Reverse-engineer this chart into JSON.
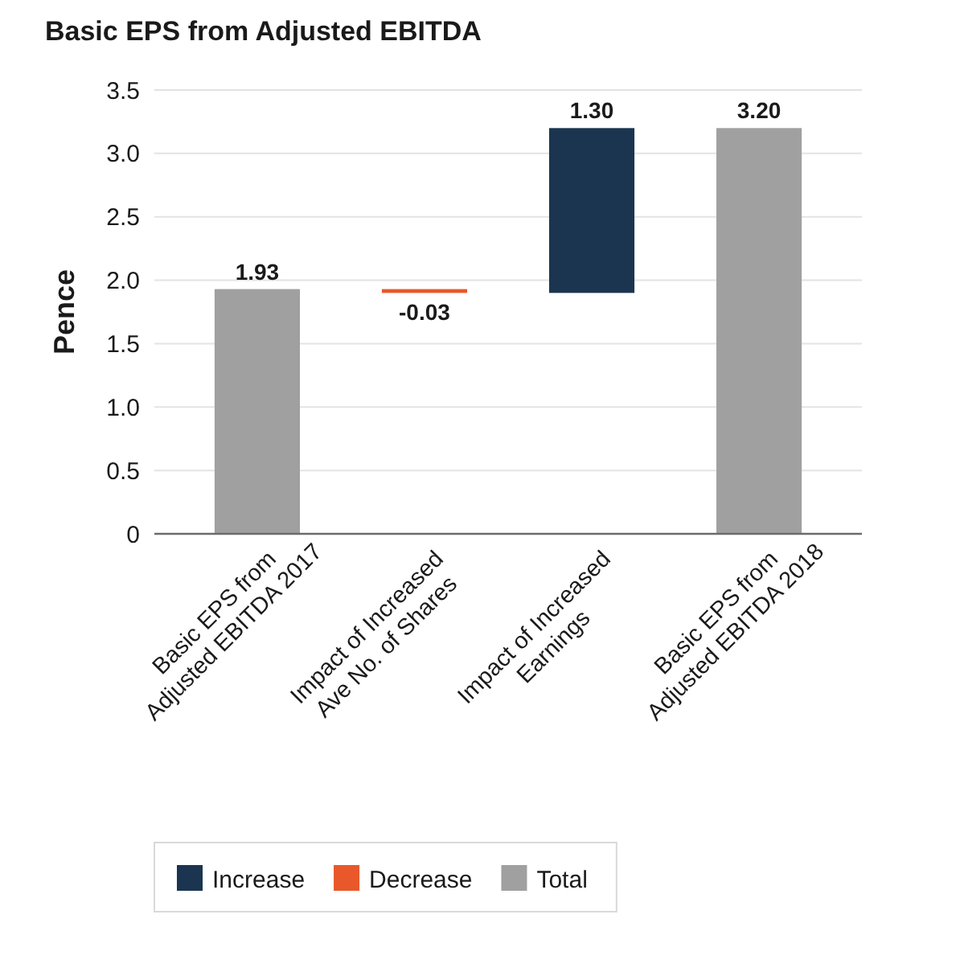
{
  "chart_data": {
    "type": "bar",
    "title": "Basic EPS from Adjusted EBITDA",
    "ylabel": "Pence",
    "categories": [
      "Basic EPS from Adjusted EBITDA 2017",
      "Impact of Increased Ave No. of Shares",
      "Impact of Increased Earnings",
      "Basic EPS from Adjusted EBITDA 2018"
    ],
    "series": [
      {
        "name": "Increase",
        "color": "#1b3550",
        "values": [
          null,
          null,
          1.3,
          null
        ],
        "base": [
          null,
          null,
          1.9,
          null
        ],
        "value_labels": [
          null,
          null,
          "1.30",
          null
        ]
      },
      {
        "name": "Decrease",
        "color": "#e8582a",
        "values": [
          null,
          -0.03,
          null,
          null
        ],
        "base": [
          null,
          1.93,
          null,
          null
        ],
        "value_labels": [
          null,
          "-0.03",
          null,
          null
        ]
      },
      {
        "name": "Total",
        "color": "#a0a0a0",
        "values": [
          1.93,
          null,
          null,
          3.2
        ],
        "base": [
          0,
          null,
          null,
          0
        ],
        "value_labels": [
          "1.93",
          null,
          null,
          "3.20"
        ]
      }
    ],
    "ylim": [
      0,
      3.5
    ],
    "yticks": [
      0,
      0.5,
      {
        "value": 1,
        "label": "1.0"
      },
      1.5,
      {
        "value": 2,
        "label": "2.0"
      },
      2.5,
      {
        "value": 3,
        "label": "3.0"
      },
      3.5
    ],
    "grid": "y",
    "legend": "bottom"
  }
}
